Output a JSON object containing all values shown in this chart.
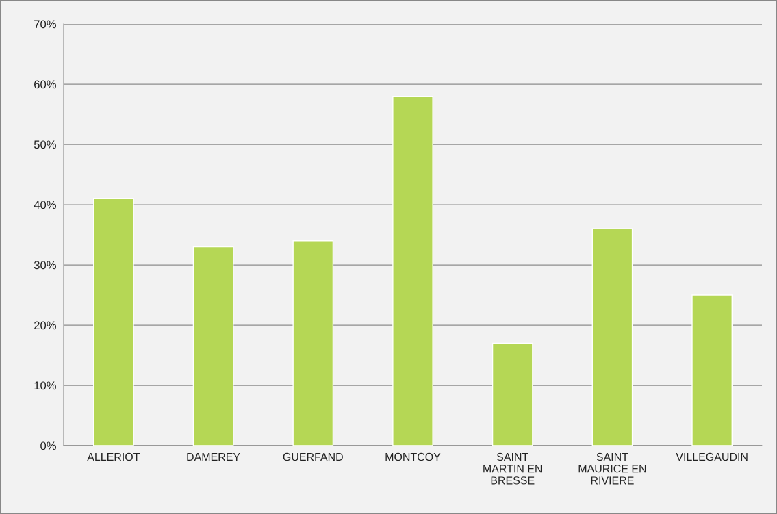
{
  "chart_data": {
    "type": "bar",
    "categories": [
      "ALLERIOT",
      "DAMEREY",
      "GUERFAND",
      "MONTCOY",
      "SAINT\nMARTIN EN\nBRESSE",
      "SAINT\nMAURICE EN\nRIVIERE",
      "VILLEGAUDIN"
    ],
    "values": [
      41,
      33,
      34,
      58,
      17,
      36,
      25
    ],
    "color": "#b5d755",
    "ylim": [
      0,
      70
    ],
    "yticks": [
      {
        "value": 0,
        "label": "0%"
      },
      {
        "value": 10,
        "label": "10%"
      },
      {
        "value": 20,
        "label": "20%"
      },
      {
        "value": 30,
        "label": "30%"
      },
      {
        "value": 40,
        "label": "40%"
      },
      {
        "value": 50,
        "label": "50%"
      },
      {
        "value": 60,
        "label": "60%"
      },
      {
        "value": 70,
        "label": "70%"
      }
    ],
    "grid": "y",
    "legend": false
  }
}
